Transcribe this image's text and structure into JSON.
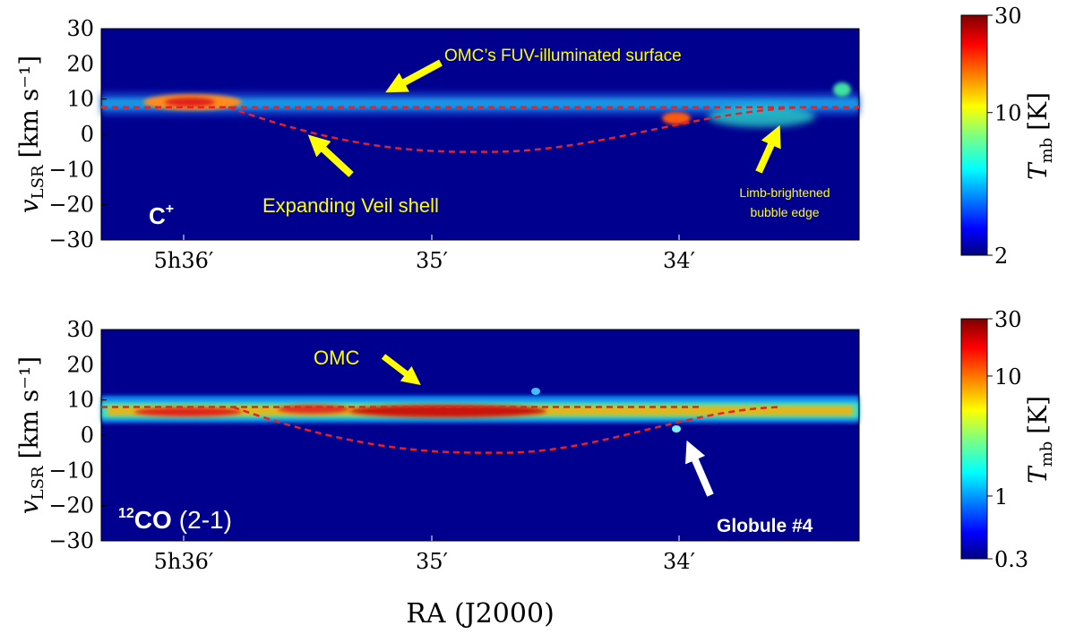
{
  "chart_data": [
    {
      "type": "heatmap",
      "panel_label": "C",
      "panel_label_sup": "+",
      "ylabel_main": "v",
      "ylabel_sub": "LSR",
      "ylabel_units": "[km s⁻¹]",
      "ylim": [
        -30,
        30
      ],
      "yticks": [
        30,
        20,
        10,
        0,
        -10,
        -20,
        -30
      ],
      "xticks": [
        "5h36′",
        "35′",
        "34′"
      ],
      "colorbar": {
        "label_main": "T",
        "label_sub": "mb",
        "label_units": "[K]",
        "ticks": [
          "30",
          "10",
          "2"
        ],
        "scale": "log"
      },
      "reference_velocity": 7.7,
      "shell_min_velocity": -5,
      "annotations": [
        {
          "name": "omc-surface",
          "text": "OMC’s FUV-illuminated surface"
        },
        {
          "name": "veil-shell",
          "text": "Expanding Veil shell"
        },
        {
          "name": "limb-edge-1",
          "text": "Limb-brightened"
        },
        {
          "name": "limb-edge-2",
          "text": "bubble edge"
        }
      ]
    },
    {
      "type": "heatmap",
      "panel_label": "CO",
      "panel_label_sup": "12",
      "panel_label_suffix": "(2-1)",
      "ylabel_main": "v",
      "ylabel_sub": "LSR",
      "ylabel_units": "[km s⁻¹]",
      "ylim": [
        -30,
        30
      ],
      "yticks": [
        30,
        20,
        10,
        0,
        -10,
        -20,
        -30
      ],
      "xticks": [
        "5h36′",
        "35′",
        "34′"
      ],
      "xlabel": "RA (J2000)",
      "colorbar": {
        "label_main": "T",
        "label_sub": "mb",
        "label_units": "[K]",
        "ticks": [
          "30",
          "10",
          "1",
          "0.3"
        ],
        "scale": "log"
      },
      "reference_velocity": 8.0,
      "shell_min_velocity": -5,
      "annotations": [
        {
          "name": "omc",
          "text": "OMC"
        },
        {
          "name": "globule-4",
          "text": "Globule #4"
        }
      ]
    }
  ],
  "colors": {
    "background": "#00008f",
    "dashed": "#e8202a",
    "arrow_yellow": "#ffff00",
    "arrow_white": "#ffffff"
  }
}
